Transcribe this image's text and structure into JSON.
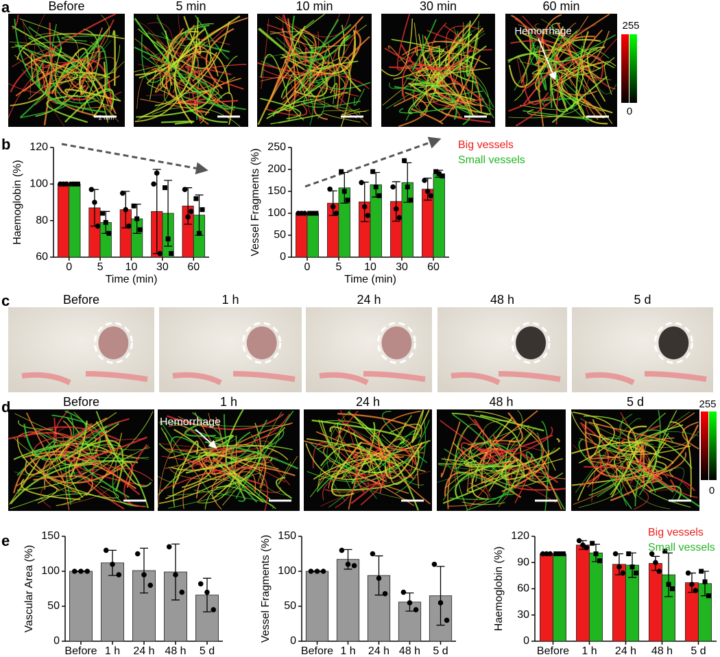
{
  "panel_labels": [
    "a",
    "b",
    "c",
    "d",
    "e"
  ],
  "row_a": {
    "titles": [
      "Before",
      "5 min",
      "10 min",
      "30 min",
      "60 min"
    ],
    "annotation": "Hemorrhage",
    "scale_label": "2 mm",
    "colorbar_max": "255",
    "colorbar_min": "0"
  },
  "row_c": {
    "titles": [
      "Before",
      "1 h",
      "24 h",
      "48 h",
      "5 d"
    ]
  },
  "row_d": {
    "titles": [
      "Before",
      "1 h",
      "24 h",
      "48 h",
      "5 d"
    ],
    "annotation": "Hemorrhage",
    "colorbar_max": "255",
    "colorbar_min": "0"
  },
  "chart_data": [
    {
      "type": "bar",
      "y_label": "Haemoglobin (%)",
      "x_label": "Time (min)",
      "categories": [
        "0",
        "5",
        "10",
        "30",
        "60"
      ],
      "ylim": [
        60,
        120
      ],
      "yticks": [
        60,
        80,
        100,
        120
      ],
      "series": [
        {
          "color": "#ee1c1c",
          "values": [
            100,
            87,
            86,
            85,
            88
          ],
          "errors": [
            0.5,
            10,
            10,
            23,
            10
          ],
          "points": [
            [
              100,
              100,
              100
            ],
            [
              97,
              90,
              77
            ],
            [
              95,
              86,
              77
            ],
            [
              100,
              106,
              62
            ],
            [
              97,
              82,
              85
            ]
          ]
        },
        {
          "color": "#22b522",
          "values": [
            100,
            79,
            81,
            84,
            83
          ],
          "errors": [
            0.5,
            6,
            8,
            18,
            11
          ],
          "points": [
            [
              100,
              100,
              100
            ],
            [
              84,
              79,
              73
            ],
            [
              88,
              81,
              75
            ],
            [
              98,
              70,
              62
            ],
            [
              92,
              73,
              86
            ]
          ]
        }
      ]
    },
    {
      "type": "bar",
      "y_label": "Vessel Fragments (%)",
      "x_label": "Time (min)",
      "categories": [
        "0",
        "5",
        "10",
        "30",
        "60"
      ],
      "ylim": [
        0,
        250
      ],
      "yticks": [
        0,
        50,
        100,
        150,
        200,
        250
      ],
      "series": [
        {
          "name": "Big vessels",
          "color": "#ee1c1c",
          "values": [
            100,
            123,
            126,
            127,
            155
          ],
          "errors": [
            2,
            28,
            45,
            45,
            25
          ],
          "points": [
            [
              100,
              100,
              100
            ],
            [
              155,
              115,
              100
            ],
            [
              170,
              115,
              95
            ],
            [
              160,
              110,
              90
            ],
            [
              175,
              150,
              140
            ]
          ]
        },
        {
          "name": "Small vessels",
          "color": "#22b522",
          "values": [
            100,
            158,
            165,
            170,
            190
          ],
          "errors": [
            3,
            35,
            28,
            45,
            8
          ],
          "points": [
            [
              100,
              100,
              100
            ],
            [
              195,
              150,
              130
            ],
            [
              195,
              160,
              140
            ],
            [
              220,
              160,
              130
            ],
            [
              195,
              190,
              185
            ]
          ]
        }
      ]
    },
    {
      "type": "bar",
      "y_label": "Vascular Area (%)",
      "categories": [
        "Before",
        "1 h",
        "24 h",
        "48 h",
        "5 d"
      ],
      "ylim": [
        0,
        150
      ],
      "yticks": [
        0,
        50,
        100,
        150
      ],
      "series": [
        {
          "color": "#999999",
          "values": [
            100,
            112,
            101,
            99,
            66
          ],
          "errors": [
            0.5,
            18,
            32,
            40,
            24
          ],
          "points": [
            [
              100,
              100,
              100
            ],
            [
              130,
              110,
              95
            ],
            [
              125,
              95,
              80
            ],
            [
              135,
              95,
              70
            ],
            [
              82,
              70,
              45
            ]
          ]
        }
      ]
    },
    {
      "type": "bar",
      "y_label": "Vessel Fragments (%)",
      "categories": [
        "Before",
        "1 h",
        "24 h",
        "48 h",
        "5 d"
      ],
      "ylim": [
        0,
        150
      ],
      "yticks": [
        0,
        50,
        100,
        150
      ],
      "series": [
        {
          "color": "#999999",
          "values": [
            100,
            117,
            94,
            56,
            65
          ],
          "errors": [
            0.5,
            14,
            28,
            13,
            42
          ],
          "points": [
            [
              100,
              100,
              100
            ],
            [
              130,
              110,
              108
            ],
            [
              125,
              90,
              68
            ],
            [
              70,
              55,
              45
            ],
            [
              110,
              55,
              30
            ]
          ]
        }
      ]
    },
    {
      "type": "bar",
      "y_label": "Haemoglobin (%)",
      "categories": [
        "Before",
        "1 h",
        "24 h",
        "48 h",
        "5 d"
      ],
      "ylim": [
        0,
        120
      ],
      "yticks": [
        0,
        30,
        60,
        90,
        120
      ],
      "series": [
        {
          "name": "Big vessels",
          "color": "#ee1c1c",
          "values": [
            100,
            110,
            88,
            89,
            67
          ],
          "errors": [
            1,
            5,
            12,
            8,
            11
          ],
          "points": [
            [
              100,
              100,
              100
            ],
            [
              115,
              110,
              107
            ],
            [
              100,
              85,
              78
            ],
            [
              100,
              90,
              80
            ],
            [
              78,
              65,
              58
            ]
          ]
        },
        {
          "name": "Small vessels",
          "color": "#22b522",
          "values": [
            100,
            101,
            87,
            76,
            66
          ],
          "errors": [
            1,
            10,
            14,
            25,
            14
          ],
          "points": [
            [
              100,
              100,
              100
            ],
            [
              112,
              100,
              92
            ],
            [
              100,
              85,
              78
            ],
            [
              103,
              65,
              60
            ],
            [
              80,
              68,
              52
            ]
          ]
        }
      ]
    }
  ]
}
